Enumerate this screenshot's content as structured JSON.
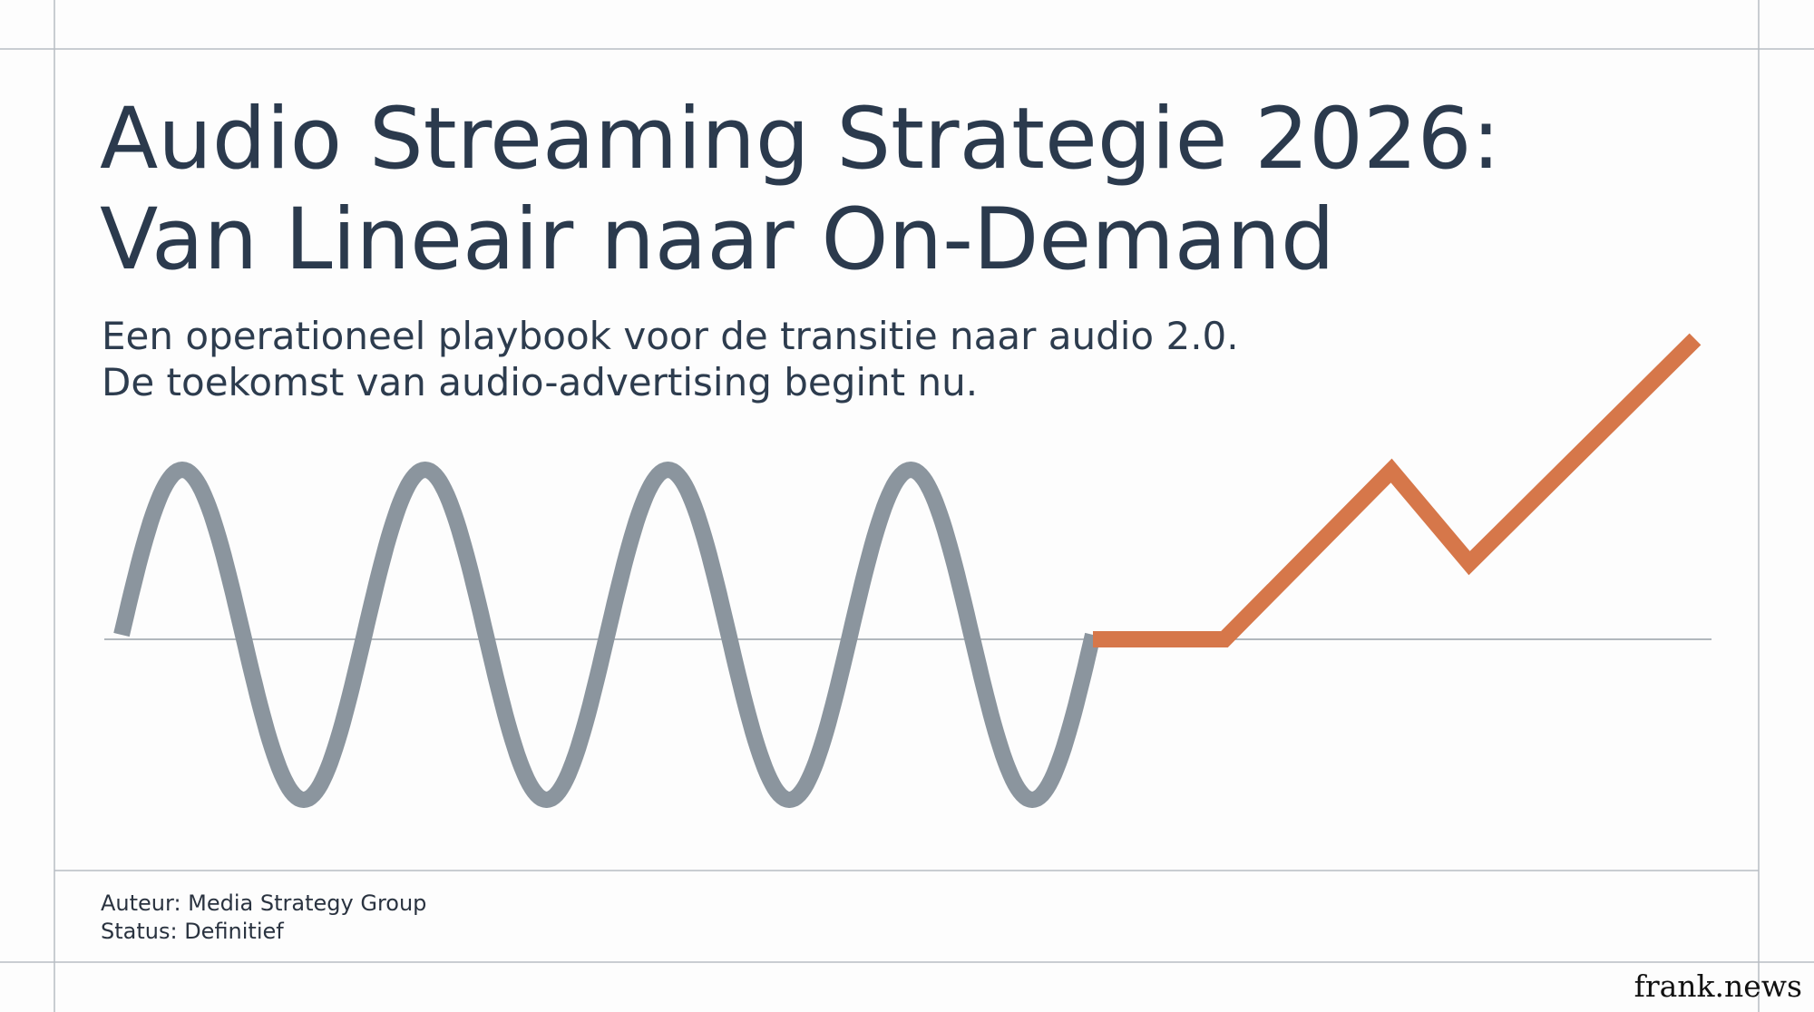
{
  "header": {
    "title": [
      "Audio Streaming Strategie 2026:",
      "Van Lineair naar On-Demand"
    ],
    "subtitle": [
      "Een operationeel playbook voor de transitie naar audio 2.0.",
      "De toekomst van audio-advertising begint nu."
    ]
  },
  "footer": {
    "author": "Auteur: Media Strategy Group",
    "status": "Status: Definitief"
  },
  "brand": "frank.news"
}
